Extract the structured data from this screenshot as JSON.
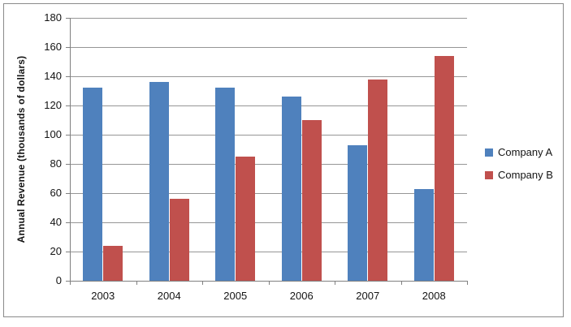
{
  "window": {
    "background_color": "#FFFFFF",
    "border_color": "#8A8A8A"
  },
  "chart_data": {
    "type": "bar",
    "title": "",
    "categories": [
      "2003",
      "2004",
      "2005",
      "2006",
      "2007",
      "2008"
    ],
    "series": [
      {
        "name": "Company A",
        "color": "#4F81BD",
        "values": [
          132,
          136,
          132,
          126,
          93,
          63
        ]
      },
      {
        "name": "Company B",
        "color": "#C0504D",
        "values": [
          24,
          56,
          85,
          110,
          138,
          154
        ]
      }
    ],
    "xlabel": "",
    "ylabel": "Annual Revenue (thousands of dollars)",
    "ylim": [
      0,
      180
    ],
    "ytick_step": 20,
    "yticks": [
      0,
      20,
      40,
      60,
      80,
      100,
      120,
      140,
      160,
      180
    ],
    "grid": true,
    "gridline_color": "#969696",
    "axis_color": "#808080",
    "text_color": "#141414",
    "legend_position": "right",
    "legend_entries": [
      "Company A",
      "Company B"
    ]
  }
}
